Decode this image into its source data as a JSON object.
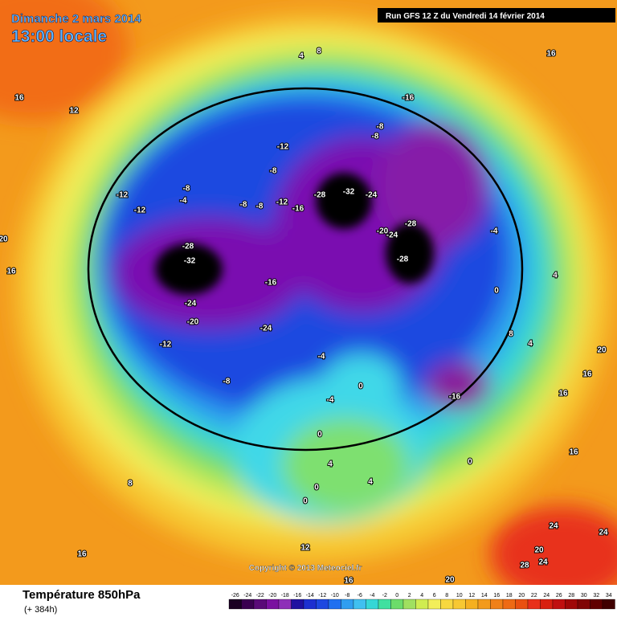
{
  "header": {
    "date": "Dimanche 2 mars 2014",
    "time": "13:00 locale",
    "run": "Run GFS 12 Z du Vendredi 14 février 2014"
  },
  "footer": {
    "title": "Température 850hPa",
    "lead": "(+ 384h)",
    "copyright": "Copyright © 2013 Meteociel.fr"
  },
  "legend": {
    "labels": [
      -26,
      -24,
      -22,
      -20,
      -18,
      -16,
      -14,
      -12,
      -10,
      -8,
      -6,
      -4,
      -2,
      0,
      2,
      4,
      6,
      8,
      10,
      12,
      14,
      16,
      18,
      20,
      22,
      24,
      26,
      28,
      30,
      32,
      34
    ]
  },
  "map_labels": [
    -16,
    -8,
    -8,
    -12,
    -8,
    -8,
    -4,
    -12,
    -12,
    -8,
    -8,
    -12,
    -16,
    -28,
    -32,
    -24,
    -20,
    -24,
    -28,
    -28,
    -28,
    -32,
    -16,
    -24,
    -20,
    -24,
    -12,
    -8,
    -4,
    -4,
    0,
    -4,
    0,
    4,
    8,
    4,
    -16,
    16,
    4,
    8,
    16,
    12,
    20,
    16,
    20,
    16,
    16,
    16,
    8,
    16,
    12,
    16,
    20,
    24,
    24,
    20,
    28,
    24,
    0,
    0,
    4,
    4,
    0,
    0
  ]
}
